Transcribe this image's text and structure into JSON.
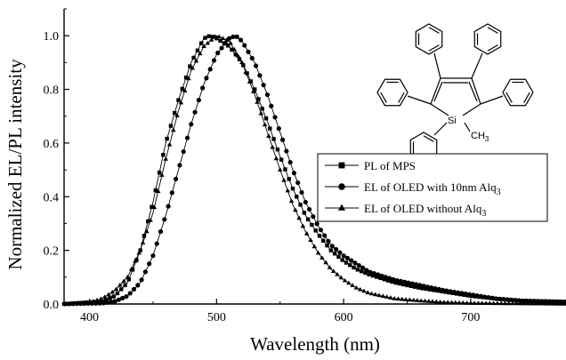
{
  "chart_data": {
    "type": "line",
    "xlabel": "Wavelength (nm)",
    "ylabel": "Normalized EL/PL intensity",
    "xlim": [
      380,
      775
    ],
    "ylim": [
      0,
      1.1
    ],
    "xticks": [
      400,
      500,
      600,
      700
    ],
    "yticks": [
      0.0,
      0.2,
      0.4,
      0.6,
      0.8,
      1.0
    ],
    "grid": false,
    "legend_position": "center-right",
    "series": [
      {
        "name": "PL of MPS",
        "marker": "square",
        "color": "#000000",
        "points": [
          [
            380,
            0
          ],
          [
            410,
            0.01
          ],
          [
            420,
            0.03
          ],
          [
            430,
            0.08
          ],
          [
            440,
            0.2
          ],
          [
            450,
            0.38
          ],
          [
            460,
            0.6
          ],
          [
            470,
            0.76
          ],
          [
            480,
            0.9
          ],
          [
            490,
            0.99
          ],
          [
            495,
            1.0
          ],
          [
            500,
            0.99
          ],
          [
            510,
            0.96
          ],
          [
            520,
            0.9
          ],
          [
            530,
            0.8
          ],
          [
            540,
            0.68
          ],
          [
            550,
            0.55
          ],
          [
            560,
            0.43
          ],
          [
            570,
            0.33
          ],
          [
            580,
            0.26
          ],
          [
            590,
            0.2
          ],
          [
            600,
            0.16
          ],
          [
            610,
            0.13
          ],
          [
            620,
            0.11
          ],
          [
            640,
            0.08
          ],
          [
            660,
            0.06
          ],
          [
            680,
            0.045
          ],
          [
            700,
            0.03
          ],
          [
            720,
            0.02
          ],
          [
            740,
            0.012
          ],
          [
            775,
            0.008
          ]
        ]
      },
      {
        "name": "EL of OLED with 10nm Alq3",
        "marker": "circle",
        "color": "#000000",
        "points": [
          [
            380,
            0
          ],
          [
            410,
            0.003
          ],
          [
            420,
            0.01
          ],
          [
            430,
            0.03
          ],
          [
            440,
            0.08
          ],
          [
            450,
            0.18
          ],
          [
            460,
            0.33
          ],
          [
            470,
            0.5
          ],
          [
            480,
            0.67
          ],
          [
            490,
            0.82
          ],
          [
            500,
            0.93
          ],
          [
            510,
            0.99
          ],
          [
            515,
            1.0
          ],
          [
            520,
            0.98
          ],
          [
            530,
            0.9
          ],
          [
            540,
            0.78
          ],
          [
            550,
            0.64
          ],
          [
            560,
            0.5
          ],
          [
            570,
            0.38
          ],
          [
            580,
            0.29
          ],
          [
            590,
            0.22
          ],
          [
            600,
            0.18
          ],
          [
            610,
            0.15
          ],
          [
            620,
            0.12
          ],
          [
            640,
            0.09
          ],
          [
            660,
            0.07
          ],
          [
            680,
            0.05
          ],
          [
            700,
            0.035
          ],
          [
            720,
            0.02
          ],
          [
            740,
            0.012
          ],
          [
            775,
            0.008
          ]
        ]
      },
      {
        "name": "EL of OLED without Alq3",
        "marker": "triangle",
        "color": "#000000",
        "points": [
          [
            380,
            0
          ],
          [
            400,
            0.005
          ],
          [
            410,
            0.02
          ],
          [
            420,
            0.05
          ],
          [
            430,
            0.1
          ],
          [
            440,
            0.2
          ],
          [
            450,
            0.34
          ],
          [
            460,
            0.54
          ],
          [
            470,
            0.72
          ],
          [
            480,
            0.87
          ],
          [
            490,
            0.96
          ],
          [
            500,
            1.0
          ],
          [
            510,
            0.98
          ],
          [
            520,
            0.9
          ],
          [
            530,
            0.78
          ],
          [
            540,
            0.64
          ],
          [
            550,
            0.5
          ],
          [
            560,
            0.37
          ],
          [
            570,
            0.27
          ],
          [
            580,
            0.19
          ],
          [
            590,
            0.13
          ],
          [
            600,
            0.09
          ],
          [
            610,
            0.06
          ],
          [
            620,
            0.04
          ],
          [
            640,
            0.02
          ],
          [
            660,
            0.012
          ],
          [
            680,
            0.006
          ],
          [
            700,
            0.003
          ],
          [
            775,
            0
          ]
        ]
      }
    ]
  },
  "legend": {
    "items": [
      {
        "text": "PL of MPS",
        "sub": ""
      },
      {
        "text": "EL of OLED with 10nm Alq",
        "sub": "3"
      },
      {
        "text": "EL of OLED without Alq",
        "sub": "3"
      }
    ]
  },
  "molecule": {
    "atom_si": "Si",
    "atom_ch3": "CH",
    "ch3_sub": "3"
  }
}
